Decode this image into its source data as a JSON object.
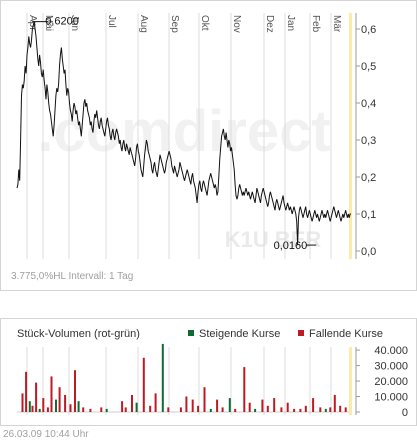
{
  "brand": {
    "watermark": ".comdirect",
    "ticker_watermark": "K1U BER"
  },
  "colors": {
    "price_line": "#111111",
    "grid": "#dcdcdc",
    "axis": "#9a9a9a",
    "highlight": "#fde9a8",
    "rising": "#0f6b32",
    "falling": "#bd1a23"
  },
  "footer": {
    "stats": "3.775,0%HL  Intervall: 1 Tag",
    "datetime": "26.03.09  10:44 Uhr"
  },
  "chart_data": [
    {
      "type": "line",
      "x_ticks": [
        "Apr",
        "Mai",
        "Jun",
        "Jul",
        "Aug",
        "Sep",
        "Okt",
        "Nov",
        "Dez",
        "Jan",
        "Feb",
        "Mär"
      ],
      "y_ticks": [
        "0,0",
        "0,1",
        "0,2",
        "0,3",
        "0,4",
        "0,5",
        "0,6"
      ],
      "ylim": [
        0,
        0.62
      ],
      "annotations": [
        {
          "label": "0,6200",
          "x_index": 19,
          "y": 0.62
        },
        {
          "label": "0,0160",
          "x_index": 324,
          "y": 0.016
        }
      ],
      "series": [
        {
          "values": [
            0.17,
            0.18,
            0.22,
            0.19,
            0.3,
            0.42,
            0.45,
            0.44,
            0.46,
            0.5,
            0.48,
            0.53,
            0.55,
            0.58,
            0.56,
            0.55,
            0.57,
            0.6,
            0.61,
            0.62,
            0.6,
            0.58,
            0.55,
            0.52,
            0.5,
            0.53,
            0.51,
            0.48,
            0.47,
            0.49,
            0.46,
            0.44,
            0.41,
            0.45,
            0.43,
            0.4,
            0.38,
            0.37,
            0.35,
            0.33,
            0.31,
            0.34,
            0.38,
            0.42,
            0.44,
            0.43,
            0.45,
            0.5,
            0.53,
            0.55,
            0.52,
            0.5,
            0.48,
            0.49,
            0.45,
            0.42,
            0.44,
            0.43,
            0.4,
            0.38,
            0.37,
            0.35,
            0.38,
            0.4,
            0.39,
            0.37,
            0.38,
            0.36,
            0.34,
            0.35,
            0.33,
            0.31,
            0.34,
            0.37,
            0.4,
            0.41,
            0.39,
            0.4,
            0.38,
            0.37,
            0.36,
            0.34,
            0.35,
            0.33,
            0.32,
            0.35,
            0.37,
            0.36,
            0.38,
            0.36,
            0.34,
            0.33,
            0.35,
            0.36,
            0.34,
            0.33,
            0.32,
            0.31,
            0.33,
            0.35,
            0.36,
            0.34,
            0.33,
            0.31,
            0.3,
            0.32,
            0.33,
            0.31,
            0.3,
            0.32,
            0.33,
            0.32,
            0.31,
            0.29,
            0.3,
            0.28,
            0.27,
            0.29,
            0.3,
            0.28,
            0.27,
            0.29,
            0.28,
            0.27,
            0.26,
            0.28,
            0.27,
            0.26,
            0.25,
            0.24,
            0.23,
            0.25,
            0.28,
            0.29,
            0.27,
            0.26,
            0.24,
            0.22,
            0.21,
            0.2,
            0.23,
            0.26,
            0.28,
            0.3,
            0.29,
            0.27,
            0.26,
            0.25,
            0.24,
            0.22,
            0.21,
            0.23,
            0.24,
            0.22,
            0.21,
            0.2,
            0.22,
            0.24,
            0.26,
            0.25,
            0.24,
            0.23,
            0.22,
            0.21,
            0.22,
            0.24,
            0.25,
            0.26,
            0.27,
            0.26,
            0.25,
            0.23,
            0.22,
            0.21,
            0.23,
            0.22,
            0.21,
            0.2,
            0.21,
            0.22,
            0.24,
            0.23,
            0.22,
            0.21,
            0.2,
            0.19,
            0.2,
            0.21,
            0.22,
            0.21,
            0.2,
            0.19,
            0.18,
            0.2,
            0.21,
            0.19,
            0.18,
            0.17,
            0.15,
            0.13,
            0.16,
            0.18,
            0.19,
            0.17,
            0.16,
            0.18,
            0.19,
            0.18,
            0.17,
            0.16,
            0.15,
            0.17,
            0.19,
            0.2,
            0.21,
            0.2,
            0.19,
            0.18,
            0.17,
            0.18,
            0.17,
            0.15,
            0.16,
            0.2,
            0.25,
            0.28,
            0.31,
            0.32,
            0.33,
            0.31,
            0.3,
            0.32,
            0.3,
            0.28,
            0.3,
            0.29,
            0.27,
            0.28,
            0.26,
            0.24,
            0.22,
            0.18,
            0.15,
            0.14,
            0.15,
            0.17,
            0.18,
            0.17,
            0.16,
            0.15,
            0.16,
            0.15,
            0.16,
            0.17,
            0.16,
            0.15,
            0.16,
            0.15,
            0.14,
            0.15,
            0.16,
            0.15,
            0.14,
            0.13,
            0.15,
            0.17,
            0.16,
            0.15,
            0.14,
            0.13,
            0.15,
            0.16,
            0.17,
            0.16,
            0.15,
            0.14,
            0.13,
            0.12,
            0.13,
            0.15,
            0.16,
            0.15,
            0.14,
            0.13,
            0.12,
            0.11,
            0.13,
            0.14,
            0.13,
            0.12,
            0.11,
            0.12,
            0.13,
            0.14,
            0.15,
            0.13,
            0.12,
            0.11,
            0.12,
            0.13,
            0.12,
            0.11,
            0.12,
            0.11,
            0.1,
            0.11,
            0.12,
            0.11,
            0.1,
            0.08,
            0.016,
            0.09,
            0.11,
            0.12,
            0.11,
            0.1,
            0.09,
            0.1,
            0.11,
            0.12,
            0.1,
            0.09,
            0.1,
            0.11,
            0.1,
            0.09,
            0.08,
            0.09,
            0.1,
            0.11,
            0.1,
            0.09,
            0.1,
            0.09,
            0.08,
            0.09,
            0.1,
            0.11,
            0.1,
            0.09,
            0.1,
            0.09,
            0.1,
            0.11,
            0.1,
            0.09,
            0.08,
            0.09,
            0.1,
            0.11,
            0.12,
            0.11,
            0.1,
            0.09,
            0.1,
            0.11,
            0.1,
            0.09,
            0.08,
            0.09,
            0.1,
            0.09,
            0.1,
            0.11,
            0.1,
            0.09,
            0.1,
            0.09,
            0.1,
            0.1
          ]
        }
      ]
    },
    {
      "type": "bar",
      "title": "Stück-Volumen (rot-grün)",
      "legend": [
        "Steigende Kurse",
        "Fallende Kurse"
      ],
      "y_ticks": [
        "0",
        "10.000",
        "20.000",
        "30.000",
        "40.000"
      ],
      "ylim": [
        0,
        42000
      ],
      "bars": [
        {
          "i": 5,
          "v": 12000,
          "d": "fall"
        },
        {
          "i": 9,
          "v": 26000,
          "d": "fall"
        },
        {
          "i": 13,
          "v": 7000,
          "d": "rise"
        },
        {
          "i": 16,
          "v": 4000,
          "d": "fall"
        },
        {
          "i": 20,
          "v": 19000,
          "d": "fall"
        },
        {
          "i": 24,
          "v": 2000,
          "d": "rise"
        },
        {
          "i": 28,
          "v": 9000,
          "d": "fall"
        },
        {
          "i": 33,
          "v": 3000,
          "d": "fall"
        },
        {
          "i": 37,
          "v": 23000,
          "d": "fall"
        },
        {
          "i": 42,
          "v": 8000,
          "d": "rise"
        },
        {
          "i": 46,
          "v": 16000,
          "d": "fall"
        },
        {
          "i": 52,
          "v": 11000,
          "d": "fall"
        },
        {
          "i": 58,
          "v": 5000,
          "d": "fall"
        },
        {
          "i": 63,
          "v": 27000,
          "d": "fall"
        },
        {
          "i": 67,
          "v": 7000,
          "d": "rise"
        },
        {
          "i": 72,
          "v": 3000,
          "d": "fall"
        },
        {
          "i": 80,
          "v": 2000,
          "d": "fall"
        },
        {
          "i": 92,
          "v": 3000,
          "d": "fall"
        },
        {
          "i": 98,
          "v": 2000,
          "d": "rise"
        },
        {
          "i": 115,
          "v": 7000,
          "d": "fall"
        },
        {
          "i": 119,
          "v": 3000,
          "d": "fall"
        },
        {
          "i": 126,
          "v": 11000,
          "d": "fall"
        },
        {
          "i": 131,
          "v": 6000,
          "d": "rise"
        },
        {
          "i": 139,
          "v": 35000,
          "d": "fall"
        },
        {
          "i": 146,
          "v": 4000,
          "d": "fall"
        },
        {
          "i": 152,
          "v": 12000,
          "d": "fall"
        },
        {
          "i": 160,
          "v": 44000,
          "d": "rise"
        },
        {
          "i": 166,
          "v": 3000,
          "d": "fall"
        },
        {
          "i": 180,
          "v": 3000,
          "d": "fall"
        },
        {
          "i": 186,
          "v": 10000,
          "d": "fall"
        },
        {
          "i": 193,
          "v": 8000,
          "d": "fall"
        },
        {
          "i": 199,
          "v": 4000,
          "d": "fall"
        },
        {
          "i": 206,
          "v": 16000,
          "d": "fall"
        },
        {
          "i": 213,
          "v": 2000,
          "d": "rise"
        },
        {
          "i": 220,
          "v": 8000,
          "d": "fall"
        },
        {
          "i": 226,
          "v": 3000,
          "d": "fall"
        },
        {
          "i": 234,
          "v": 9000,
          "d": "rise"
        },
        {
          "i": 240,
          "v": 2000,
          "d": "fall"
        },
        {
          "i": 250,
          "v": 29000,
          "d": "fall"
        },
        {
          "i": 256,
          "v": 6000,
          "d": "fall"
        },
        {
          "i": 262,
          "v": 2000,
          "d": "rise"
        },
        {
          "i": 270,
          "v": 8000,
          "d": "fall"
        },
        {
          "i": 276,
          "v": 4000,
          "d": "fall"
        },
        {
          "i": 283,
          "v": 9000,
          "d": "fall"
        },
        {
          "i": 291,
          "v": 3000,
          "d": "fall"
        },
        {
          "i": 298,
          "v": 6000,
          "d": "fall"
        },
        {
          "i": 305,
          "v": 2000,
          "d": "fall"
        },
        {
          "i": 312,
          "v": 2000,
          "d": "fall"
        },
        {
          "i": 318,
          "v": 4000,
          "d": "fall"
        },
        {
          "i": 326,
          "v": 9000,
          "d": "fall"
        },
        {
          "i": 334,
          "v": 3000,
          "d": "fall"
        },
        {
          "i": 340,
          "v": 2000,
          "d": "rise"
        },
        {
          "i": 345,
          "v": 3000,
          "d": "fall"
        },
        {
          "i": 350,
          "v": 11000,
          "d": "fall"
        },
        {
          "i": 356,
          "v": 4000,
          "d": "fall"
        },
        {
          "i": 362,
          "v": 3000,
          "d": "fall"
        }
      ]
    }
  ]
}
